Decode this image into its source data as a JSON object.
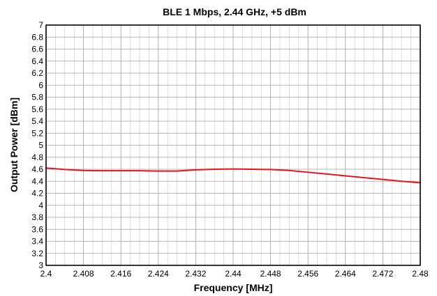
{
  "chart_data": {
    "type": "line",
    "title": "BLE 1 Mbps, 2.44 GHz, +5 dBm",
    "xlabel": "Frequency [MHz]",
    "ylabel": "Output Power [dBm]",
    "xlim": [
      2.4,
      2.48
    ],
    "ylim": [
      3,
      7
    ],
    "x_ticks": [
      "2.4",
      "2.408",
      "2.416",
      "2.424",
      "2.432",
      "2.44",
      "2.448",
      "2.456",
      "2.464",
      "2.472",
      "2.48"
    ],
    "y_ticks": [
      "3",
      "3.2",
      "3.4",
      "3.6",
      "3.8",
      "4",
      "4.2",
      "4.4",
      "4.6",
      "4.8",
      "5",
      "5.2",
      "5.4",
      "5.6",
      "5.8",
      "6",
      "6.2",
      "6.4",
      "6.6",
      "6.8",
      "7"
    ],
    "grid": true,
    "series": [
      {
        "color": "#e8141b",
        "x": [
          2.4,
          2.404,
          2.408,
          2.412,
          2.416,
          2.42,
          2.424,
          2.428,
          2.432,
          2.436,
          2.44,
          2.444,
          2.448,
          2.452,
          2.456,
          2.46,
          2.464,
          2.468,
          2.472,
          2.476,
          2.48
        ],
        "y": [
          4.62,
          4.595,
          4.58,
          4.575,
          4.575,
          4.575,
          4.57,
          4.57,
          4.59,
          4.6,
          4.605,
          4.6,
          4.595,
          4.58,
          4.55,
          4.52,
          4.49,
          4.46,
          4.43,
          4.4,
          4.375
        ]
      }
    ]
  }
}
